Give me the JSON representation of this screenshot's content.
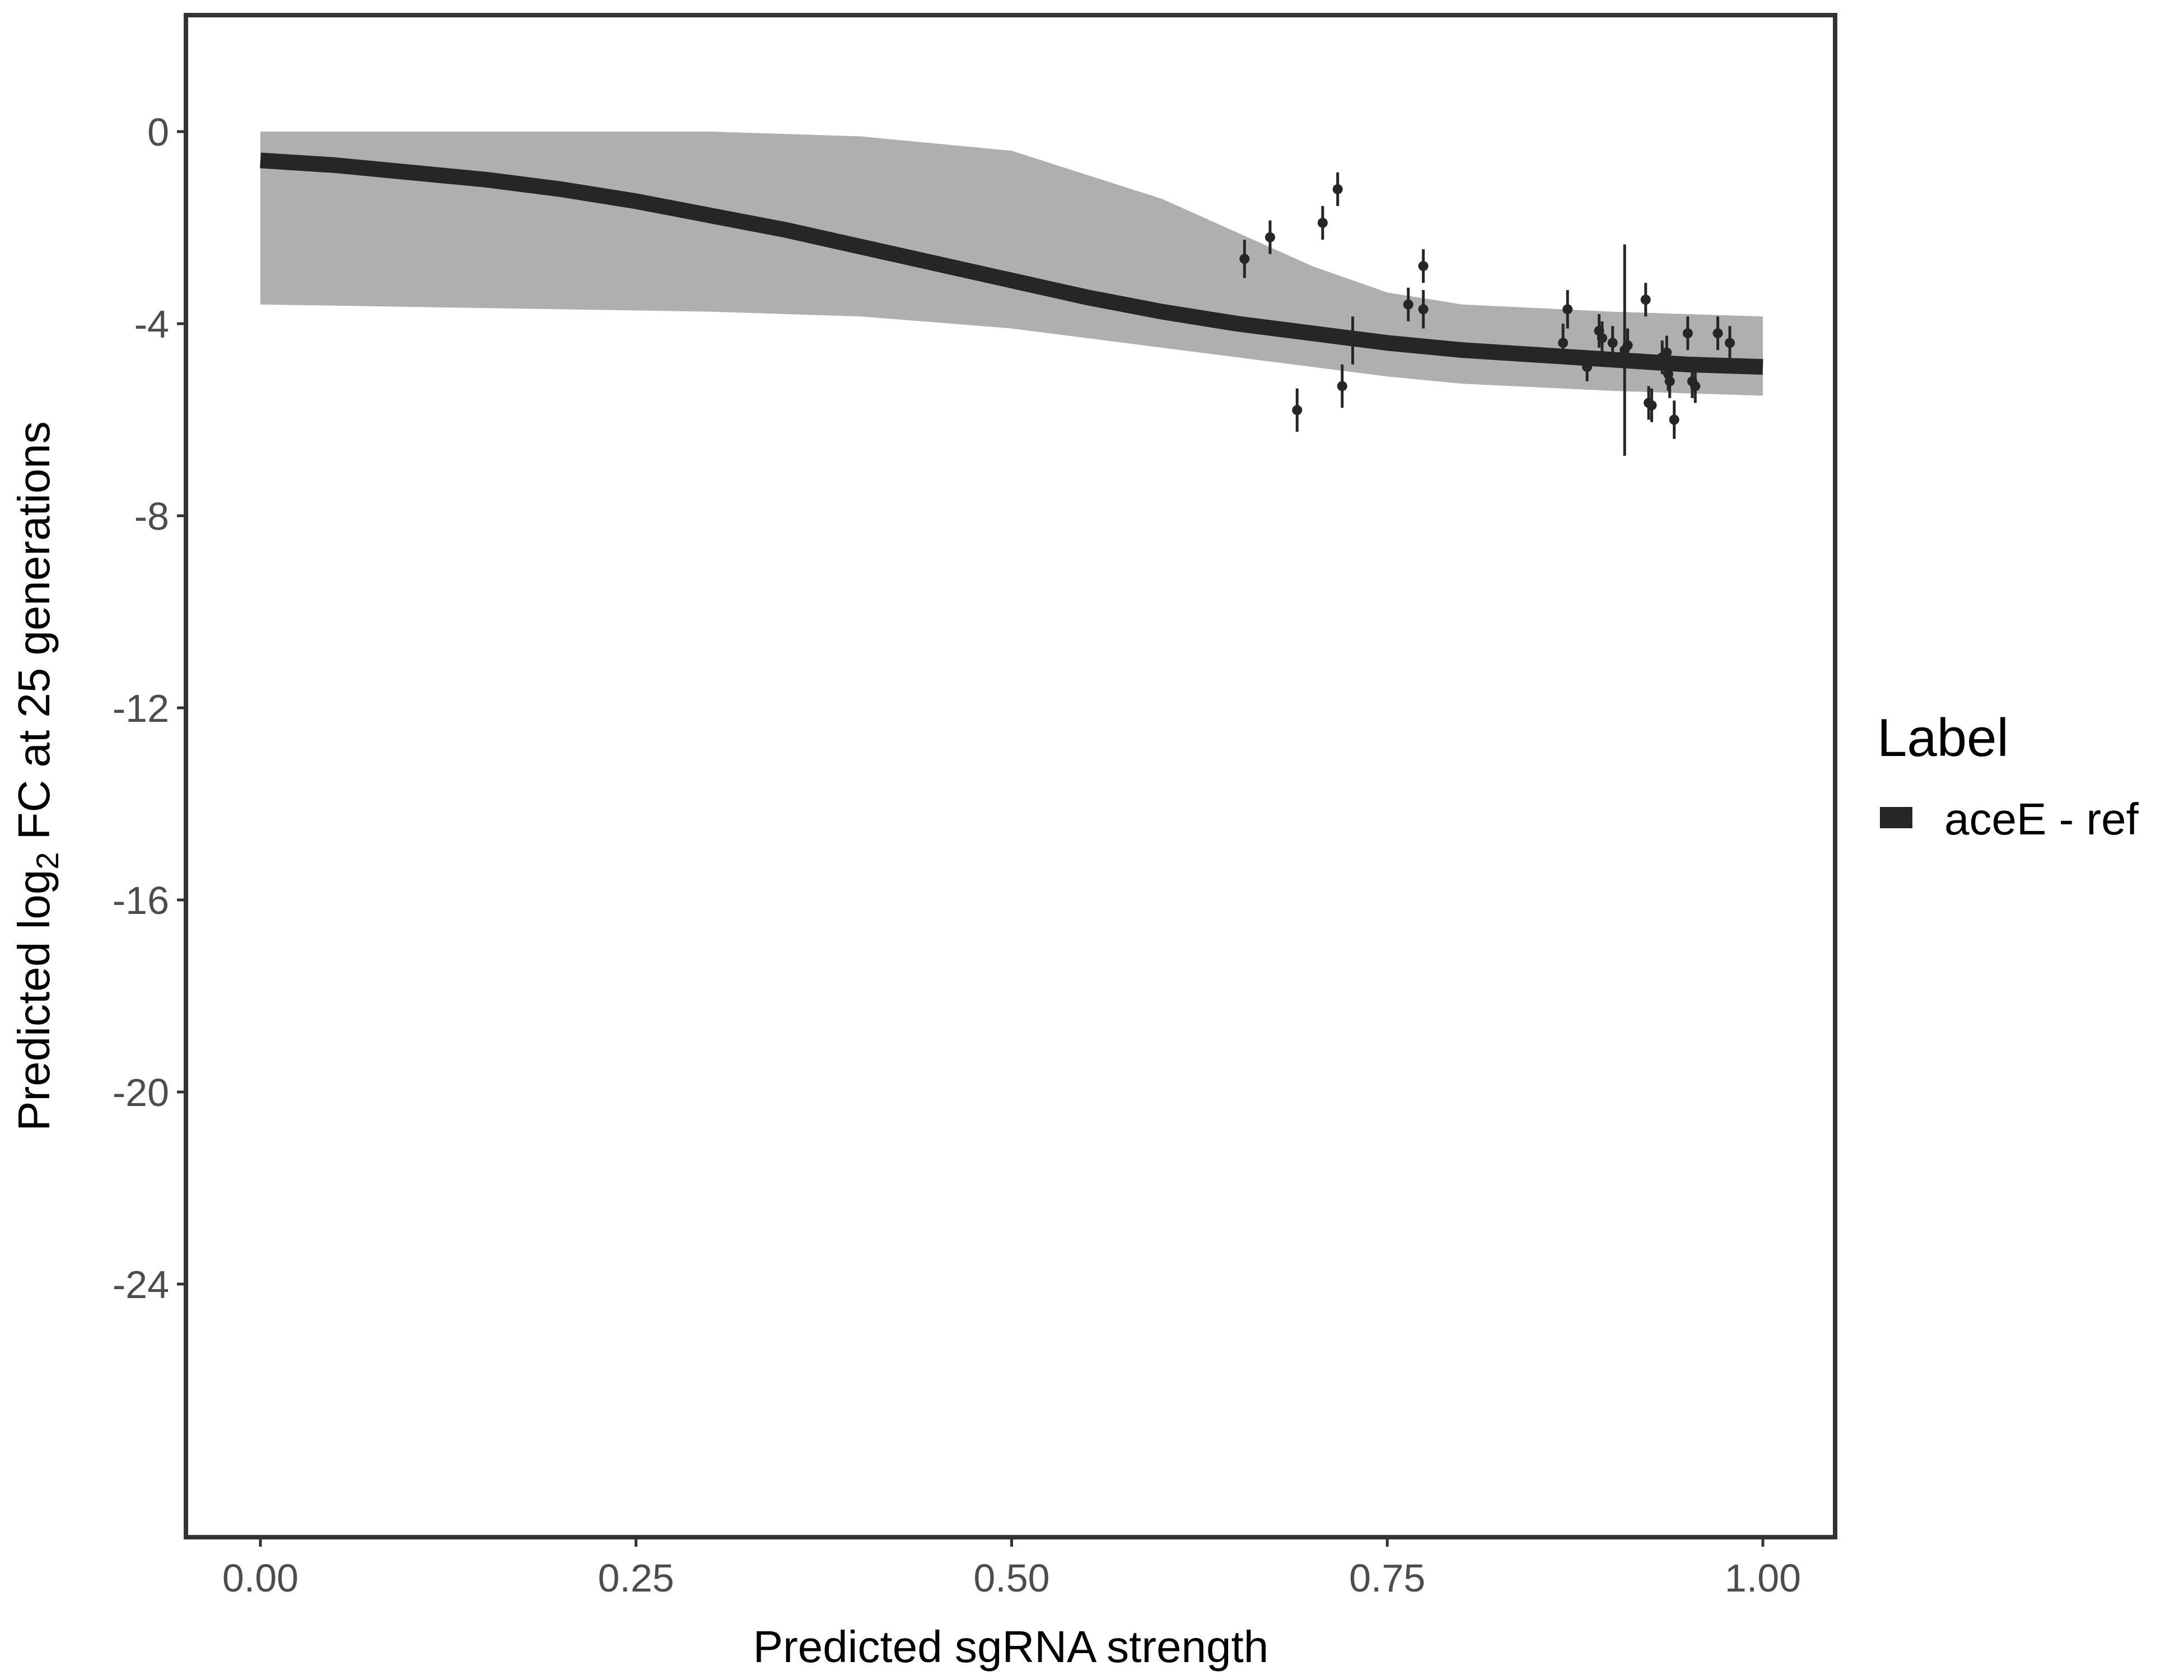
{
  "chart_data": {
    "type": "line",
    "xlabel": "Predicted sgRNA strength",
    "ylabel_parts": [
      "Predicted ",
      "log",
      "2",
      " FC at 25 generations"
    ],
    "xlim": [
      -0.1,
      2.6
    ],
    "x_ticks": [
      0,
      0.25,
      0.5,
      0.75,
      1
    ],
    "x_tick_labels": [
      "0.00",
      "0.25",
      "0.50",
      "0.75",
      "1.00"
    ],
    "ylim": [
      -29.5,
      2.5
    ],
    "y_ticks": [
      0,
      -4,
      -8,
      -12,
      -16,
      -20,
      -24
    ],
    "y_tick_labels": [
      "0",
      "-4",
      "-8",
      "-12",
      "-16",
      "-20",
      "-24"
    ],
    "grid": false,
    "legend": {
      "title": "Label",
      "position": "right",
      "entries": [
        {
          "label": "aceE - ref",
          "color": "#262626"
        }
      ]
    },
    "fit_line": {
      "name": "aceE - ref",
      "color": "#262626",
      "x": [
        0.0,
        0.05,
        0.1,
        0.15,
        0.2,
        0.25,
        0.3,
        0.35,
        0.4,
        0.45,
        0.5,
        0.55,
        0.6,
        0.65,
        0.7,
        0.75,
        0.8,
        0.85,
        0.9,
        0.95,
        1.0
      ],
      "y": [
        -0.6,
        -0.7,
        -0.85,
        -1.0,
        -1.2,
        -1.45,
        -1.75,
        -2.05,
        -2.4,
        -2.75,
        -3.1,
        -3.45,
        -3.75,
        -4.0,
        -4.2,
        -4.4,
        -4.55,
        -4.65,
        -4.75,
        -4.85,
        -4.9
      ]
    },
    "posterior_band": {
      "color": "#a6a6a6",
      "x": [
        0.0,
        0.1,
        0.2,
        0.3,
        0.4,
        0.5,
        0.6,
        0.7,
        0.75,
        0.8,
        0.9,
        1.0
      ],
      "upper": [
        0.0,
        0.0,
        0.0,
        0.0,
        -0.1,
        -0.4,
        -1.4,
        -2.8,
        -3.35,
        -3.6,
        -3.75,
        -3.85
      ],
      "lower": [
        -3.6,
        -3.65,
        -3.7,
        -3.75,
        -3.85,
        -4.1,
        -4.5,
        -4.9,
        -5.1,
        -5.25,
        -5.4,
        -5.5
      ]
    },
    "points": [
      {
        "x": 0.655,
        "y": -2.65,
        "err": 0.4
      },
      {
        "x": 0.672,
        "y": -2.2,
        "err": 0.35
      },
      {
        "x": 0.69,
        "y": -5.8,
        "err": 0.45
      },
      {
        "x": 0.707,
        "y": -1.9,
        "err": 0.35
      },
      {
        "x": 0.717,
        "y": -1.2,
        "err": 0.35
      },
      {
        "x": 0.72,
        "y": -5.3,
        "err": 0.45
      },
      {
        "x": 0.727,
        "y": -4.35,
        "err": 0.5
      },
      {
        "x": 0.764,
        "y": -3.6,
        "err": 0.35
      },
      {
        "x": 0.774,
        "y": -2.8,
        "err": 0.35
      },
      {
        "x": 0.774,
        "y": -3.7,
        "err": 0.4
      },
      {
        "x": 0.867,
        "y": -4.4,
        "err": 0.4
      },
      {
        "x": 0.87,
        "y": -3.7,
        "err": 0.4
      },
      {
        "x": 0.883,
        "y": -4.9,
        "err": 0.3
      },
      {
        "x": 0.891,
        "y": -4.15,
        "err": 0.35
      },
      {
        "x": 0.893,
        "y": -4.3,
        "err": 0.35
      },
      {
        "x": 0.9,
        "y": -4.4,
        "err": 0.35
      },
      {
        "x": 0.908,
        "y": -4.55,
        "err": 2.2
      },
      {
        "x": 0.91,
        "y": -4.45,
        "err": 0.35
      },
      {
        "x": 0.922,
        "y": -3.5,
        "err": 0.35
      },
      {
        "x": 0.924,
        "y": -5.65,
        "err": 0.35
      },
      {
        "x": 0.926,
        "y": -5.7,
        "err": 0.35
      },
      {
        "x": 0.933,
        "y": -4.7,
        "err": 0.35
      },
      {
        "x": 0.936,
        "y": -4.6,
        "err": 0.35
      },
      {
        "x": 0.937,
        "y": -5.05,
        "err": 0.35
      },
      {
        "x": 0.938,
        "y": -5.2,
        "err": 0.35
      },
      {
        "x": 0.941,
        "y": -6.0,
        "err": 0.4
      },
      {
        "x": 0.95,
        "y": -4.2,
        "err": 0.35
      },
      {
        "x": 0.953,
        "y": -5.2,
        "err": 0.35
      },
      {
        "x": 0.955,
        "y": -5.3,
        "err": 0.35
      },
      {
        "x": 0.97,
        "y": -4.2,
        "err": 0.35
      },
      {
        "x": 0.978,
        "y": -4.4,
        "err": 0.35
      }
    ]
  }
}
